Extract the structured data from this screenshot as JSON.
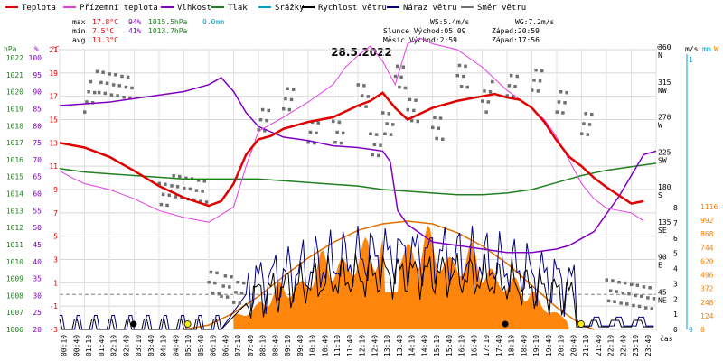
{
  "chart_data": {
    "type": "line",
    "title": "28.5.2022",
    "legend": [
      {
        "label": "Teplota",
        "color": "#e00000"
      },
      {
        "label": "Přízemní teplota",
        "color": "#e040e0"
      },
      {
        "label": "Vlhkost",
        "color": "#8000c0"
      },
      {
        "label": "Tlak",
        "color": "#208020"
      },
      {
        "label": "Srážky",
        "color": "#00a0d0"
      },
      {
        "label": "Rychlost větru",
        "color": "#000000"
      },
      {
        "label": "Náraz větru",
        "color": "#000080"
      },
      {
        "label": "Směr větru",
        "color": "#707070"
      }
    ],
    "stats": {
      "max_label": "max",
      "max_temp": "17.8°C",
      "max_hum": "94%",
      "max_pres": "1015.5hPa",
      "max_rain": "0.0mm",
      "min_label": "min",
      "min_temp": "7.5°C",
      "min_hum": "41%",
      "min_pres": "1013.7hPa",
      "avg_label": "avg",
      "avg_temp": "13.3°C",
      "ws": "WS:5.4m/s",
      "wg": "WG:7.2m/s",
      "sun": "Slunce Východ:05:09",
      "sunset": "Západ:20:59",
      "moon": "Měsíc Východ:2:59",
      "moonset": "Západ:17:56"
    },
    "axis_titles": {
      "pres": "hPa",
      "hum": "%",
      "temp": "°C",
      "dir": "°",
      "wind": "m/s",
      "rain": "mm",
      "solar": "W",
      "time": "čas"
    },
    "pres_ticks": [
      "1022",
      "1021",
      "1020",
      "1019",
      "1018",
      "1017",
      "1016",
      "1015",
      "1014",
      "1013",
      "1012",
      "1011",
      "1010",
      "1009",
      "1008",
      "1007",
      "1006"
    ],
    "hum_ticks": [
      "100",
      "95",
      "90",
      "85",
      "80",
      "75",
      "70",
      "65",
      "60",
      "55",
      "50",
      "45",
      "40",
      "35",
      "30",
      "25",
      "20"
    ],
    "temp_ticks": [
      "21",
      "19",
      "17",
      "15",
      "13",
      "11",
      "9",
      "7",
      "5",
      "3",
      "1",
      "-1",
      "-3"
    ],
    "dir_ticks": [
      {
        "deg": 360,
        "deg_label": "360",
        "card": "N"
      },
      {
        "deg": 315,
        "deg_label": "315",
        "card": "NW"
      },
      {
        "deg": 270,
        "deg_label": "270",
        "card": "W"
      },
      {
        "deg": 225,
        "deg_label": "225",
        "card": "SW"
      },
      {
        "deg": 180,
        "deg_label": "180",
        "card": "S"
      },
      {
        "deg": 135,
        "deg_label": "135",
        "card": "SE"
      },
      {
        "deg": 90,
        "deg_label": "90",
        "card": "E"
      },
      {
        "deg": 45,
        "deg_label": "45",
        "card": "NE"
      }
    ],
    "wind_ticks": [
      "8",
      "7",
      "6",
      "5",
      "4",
      "3",
      "2",
      "1",
      "0"
    ],
    "rain_ticks": [
      "1",
      "0"
    ],
    "solar_ticks": [
      "1116",
      "992",
      "868",
      "744",
      "620",
      "496",
      "372",
      "248",
      "124",
      "0"
    ],
    "time_labels": [
      "00:10",
      "00:40",
      "01:10",
      "01:40",
      "02:10",
      "02:40",
      "03:10",
      "03:40",
      "04:10",
      "04:40",
      "05:10",
      "05:40",
      "06:10",
      "06:40",
      "07:10",
      "07:40",
      "08:10",
      "08:40",
      "09:10",
      "09:40",
      "10:10",
      "10:40",
      "11:10",
      "11:40",
      "12:10",
      "12:40",
      "13:10",
      "13:40",
      "14:10",
      "14:40",
      "15:10",
      "15:40",
      "16:10",
      "16:40",
      "17:10",
      "17:40",
      "18:10",
      "18:40",
      "19:10",
      "19:40",
      "20:10",
      "20:40",
      "21:10",
      "21:40",
      "22:10",
      "22:40",
      "23:10",
      "23:40"
    ],
    "x_range_hours": [
      0,
      24
    ],
    "series": {
      "temperature": [
        [
          0,
          13.0
        ],
        [
          1,
          12.6
        ],
        [
          2,
          11.8
        ],
        [
          3,
          10.6
        ],
        [
          4,
          9.3
        ],
        [
          5,
          8.3
        ],
        [
          6,
          7.6
        ],
        [
          6.5,
          8.0
        ],
        [
          7,
          9.5
        ],
        [
          7.5,
          12.0
        ],
        [
          8,
          13.3
        ],
        [
          8.5,
          13.6
        ],
        [
          9,
          14.2
        ],
        [
          10,
          14.8
        ],
        [
          11,
          15.2
        ],
        [
          11.5,
          15.7
        ],
        [
          12,
          16.2
        ],
        [
          12.5,
          16.6
        ],
        [
          13,
          17.3
        ],
        [
          13.5,
          16.0
        ],
        [
          14,
          15.0
        ],
        [
          14.5,
          15.5
        ],
        [
          15,
          16.0
        ],
        [
          16,
          16.6
        ],
        [
          17,
          17.0
        ],
        [
          17.5,
          17.2
        ],
        [
          18,
          16.9
        ],
        [
          18.5,
          16.7
        ],
        [
          19,
          16.0
        ],
        [
          19.5,
          14.8
        ],
        [
          20,
          13.2
        ],
        [
          20.5,
          11.8
        ],
        [
          21,
          11.0
        ],
        [
          21.5,
          10.0
        ],
        [
          22,
          9.2
        ],
        [
          22.5,
          8.5
        ],
        [
          23,
          7.8
        ],
        [
          23.5,
          8.0
        ]
      ],
      "ground_temperature": [
        [
          0,
          10.6
        ],
        [
          0.5,
          10.0
        ],
        [
          1,
          9.5
        ],
        [
          2,
          9.0
        ],
        [
          3,
          8.2
        ],
        [
          4,
          7.2
        ],
        [
          5,
          6.6
        ],
        [
          6,
          6.2
        ],
        [
          7,
          7.5
        ],
        [
          7.5,
          11.0
        ],
        [
          8,
          14.0
        ],
        [
          9,
          15.2
        ],
        [
          10,
          16.5
        ],
        [
          11,
          18.0
        ],
        [
          11.5,
          19.5
        ],
        [
          12,
          20.5
        ],
        [
          12.5,
          21.3
        ],
        [
          13,
          20.0
        ],
        [
          13.5,
          18.0
        ],
        [
          14,
          21.5
        ],
        [
          14.5,
          22.0
        ],
        [
          15,
          21.5
        ],
        [
          16,
          21.0
        ],
        [
          17,
          19.5
        ],
        [
          17.5,
          18.5
        ],
        [
          18,
          17.5
        ],
        [
          19,
          16.0
        ],
        [
          19.5,
          15.0
        ],
        [
          20,
          13.5
        ],
        [
          20.5,
          11.5
        ],
        [
          21,
          9.5
        ],
        [
          21.5,
          8.2
        ],
        [
          22,
          7.4
        ],
        [
          23,
          7.0
        ],
        [
          23.5,
          6.3
        ]
      ],
      "humidity": [
        [
          0,
          84
        ],
        [
          1,
          84.5
        ],
        [
          2,
          85
        ],
        [
          3,
          86
        ],
        [
          4,
          87
        ],
        [
          5,
          88
        ],
        [
          6,
          90
        ],
        [
          6.5,
          92
        ],
        [
          7,
          88
        ],
        [
          7.5,
          82
        ],
        [
          8,
          78
        ],
        [
          9,
          75
        ],
        [
          10,
          74
        ],
        [
          11,
          72.5
        ],
        [
          12,
          72
        ],
        [
          13,
          71
        ],
        [
          13.3,
          68
        ],
        [
          13.6,
          54
        ],
        [
          14,
          50
        ],
        [
          15,
          45
        ],
        [
          16,
          44
        ],
        [
          17,
          43
        ],
        [
          18,
          42
        ],
        [
          19,
          42
        ],
        [
          20,
          43
        ],
        [
          20.5,
          44
        ],
        [
          21,
          46
        ],
        [
          21.5,
          48
        ],
        [
          22,
          53
        ],
        [
          22.5,
          58
        ],
        [
          23,
          64
        ],
        [
          23.5,
          70
        ],
        [
          24,
          71
        ]
      ],
      "pressure": [
        [
          0,
          1015.2
        ],
        [
          1,
          1015.0
        ],
        [
          2,
          1014.9
        ],
        [
          3,
          1014.8
        ],
        [
          4,
          1014.7
        ],
        [
          5,
          1014.6
        ],
        [
          6,
          1014.6
        ],
        [
          7,
          1014.6
        ],
        [
          8,
          1014.6
        ],
        [
          9,
          1014.5
        ],
        [
          10,
          1014.4
        ],
        [
          11,
          1014.3
        ],
        [
          12,
          1014.2
        ],
        [
          13,
          1014.0
        ],
        [
          14,
          1013.9
        ],
        [
          15,
          1013.8
        ],
        [
          16,
          1013.7
        ],
        [
          17,
          1013.7
        ],
        [
          18,
          1013.8
        ],
        [
          19,
          1014.0
        ],
        [
          20,
          1014.4
        ],
        [
          21,
          1014.8
        ],
        [
          22,
          1015.1
        ],
        [
          23,
          1015.3
        ],
        [
          24,
          1015.5
        ]
      ],
      "wind_direction_samples": [
        [
          1,
          300
        ],
        [
          1.5,
          315
        ],
        [
          2,
          315
        ],
        [
          2.5,
          315
        ],
        [
          4,
          180
        ],
        [
          4.5,
          180
        ],
        [
          5,
          180
        ],
        [
          5.5,
          180
        ],
        [
          6,
          65
        ],
        [
          6.5,
          50
        ],
        [
          7,
          45
        ],
        [
          8,
          270
        ],
        [
          9,
          300
        ],
        [
          10,
          260
        ],
        [
          11,
          250
        ],
        [
          12,
          300
        ],
        [
          12.5,
          240
        ],
        [
          13,
          270
        ],
        [
          13.5,
          320
        ],
        [
          14,
          280
        ],
        [
          15,
          260
        ],
        [
          16,
          330
        ],
        [
          17,
          300
        ],
        [
          18,
          310
        ],
        [
          19,
          320
        ],
        [
          20,
          295
        ],
        [
          21,
          270
        ],
        [
          22,
          45
        ],
        [
          22.5,
          45
        ],
        [
          23,
          45
        ],
        [
          23.5,
          45
        ]
      ],
      "solar_envelope": [
        [
          5,
          0
        ],
        [
          6,
          40
        ],
        [
          7,
          150
        ],
        [
          8,
          300
        ],
        [
          9,
          480
        ],
        [
          10,
          650
        ],
        [
          11,
          790
        ],
        [
          12,
          900
        ],
        [
          13,
          960
        ],
        [
          14,
          985
        ],
        [
          15,
          960
        ],
        [
          16,
          880
        ],
        [
          17,
          760
        ],
        [
          18,
          600
        ],
        [
          19,
          400
        ],
        [
          20,
          200
        ],
        [
          21,
          40
        ],
        [
          21.5,
          0
        ]
      ],
      "wind_speed_max": 7.2,
      "wind_speed_avg": 5.4
    }
  }
}
